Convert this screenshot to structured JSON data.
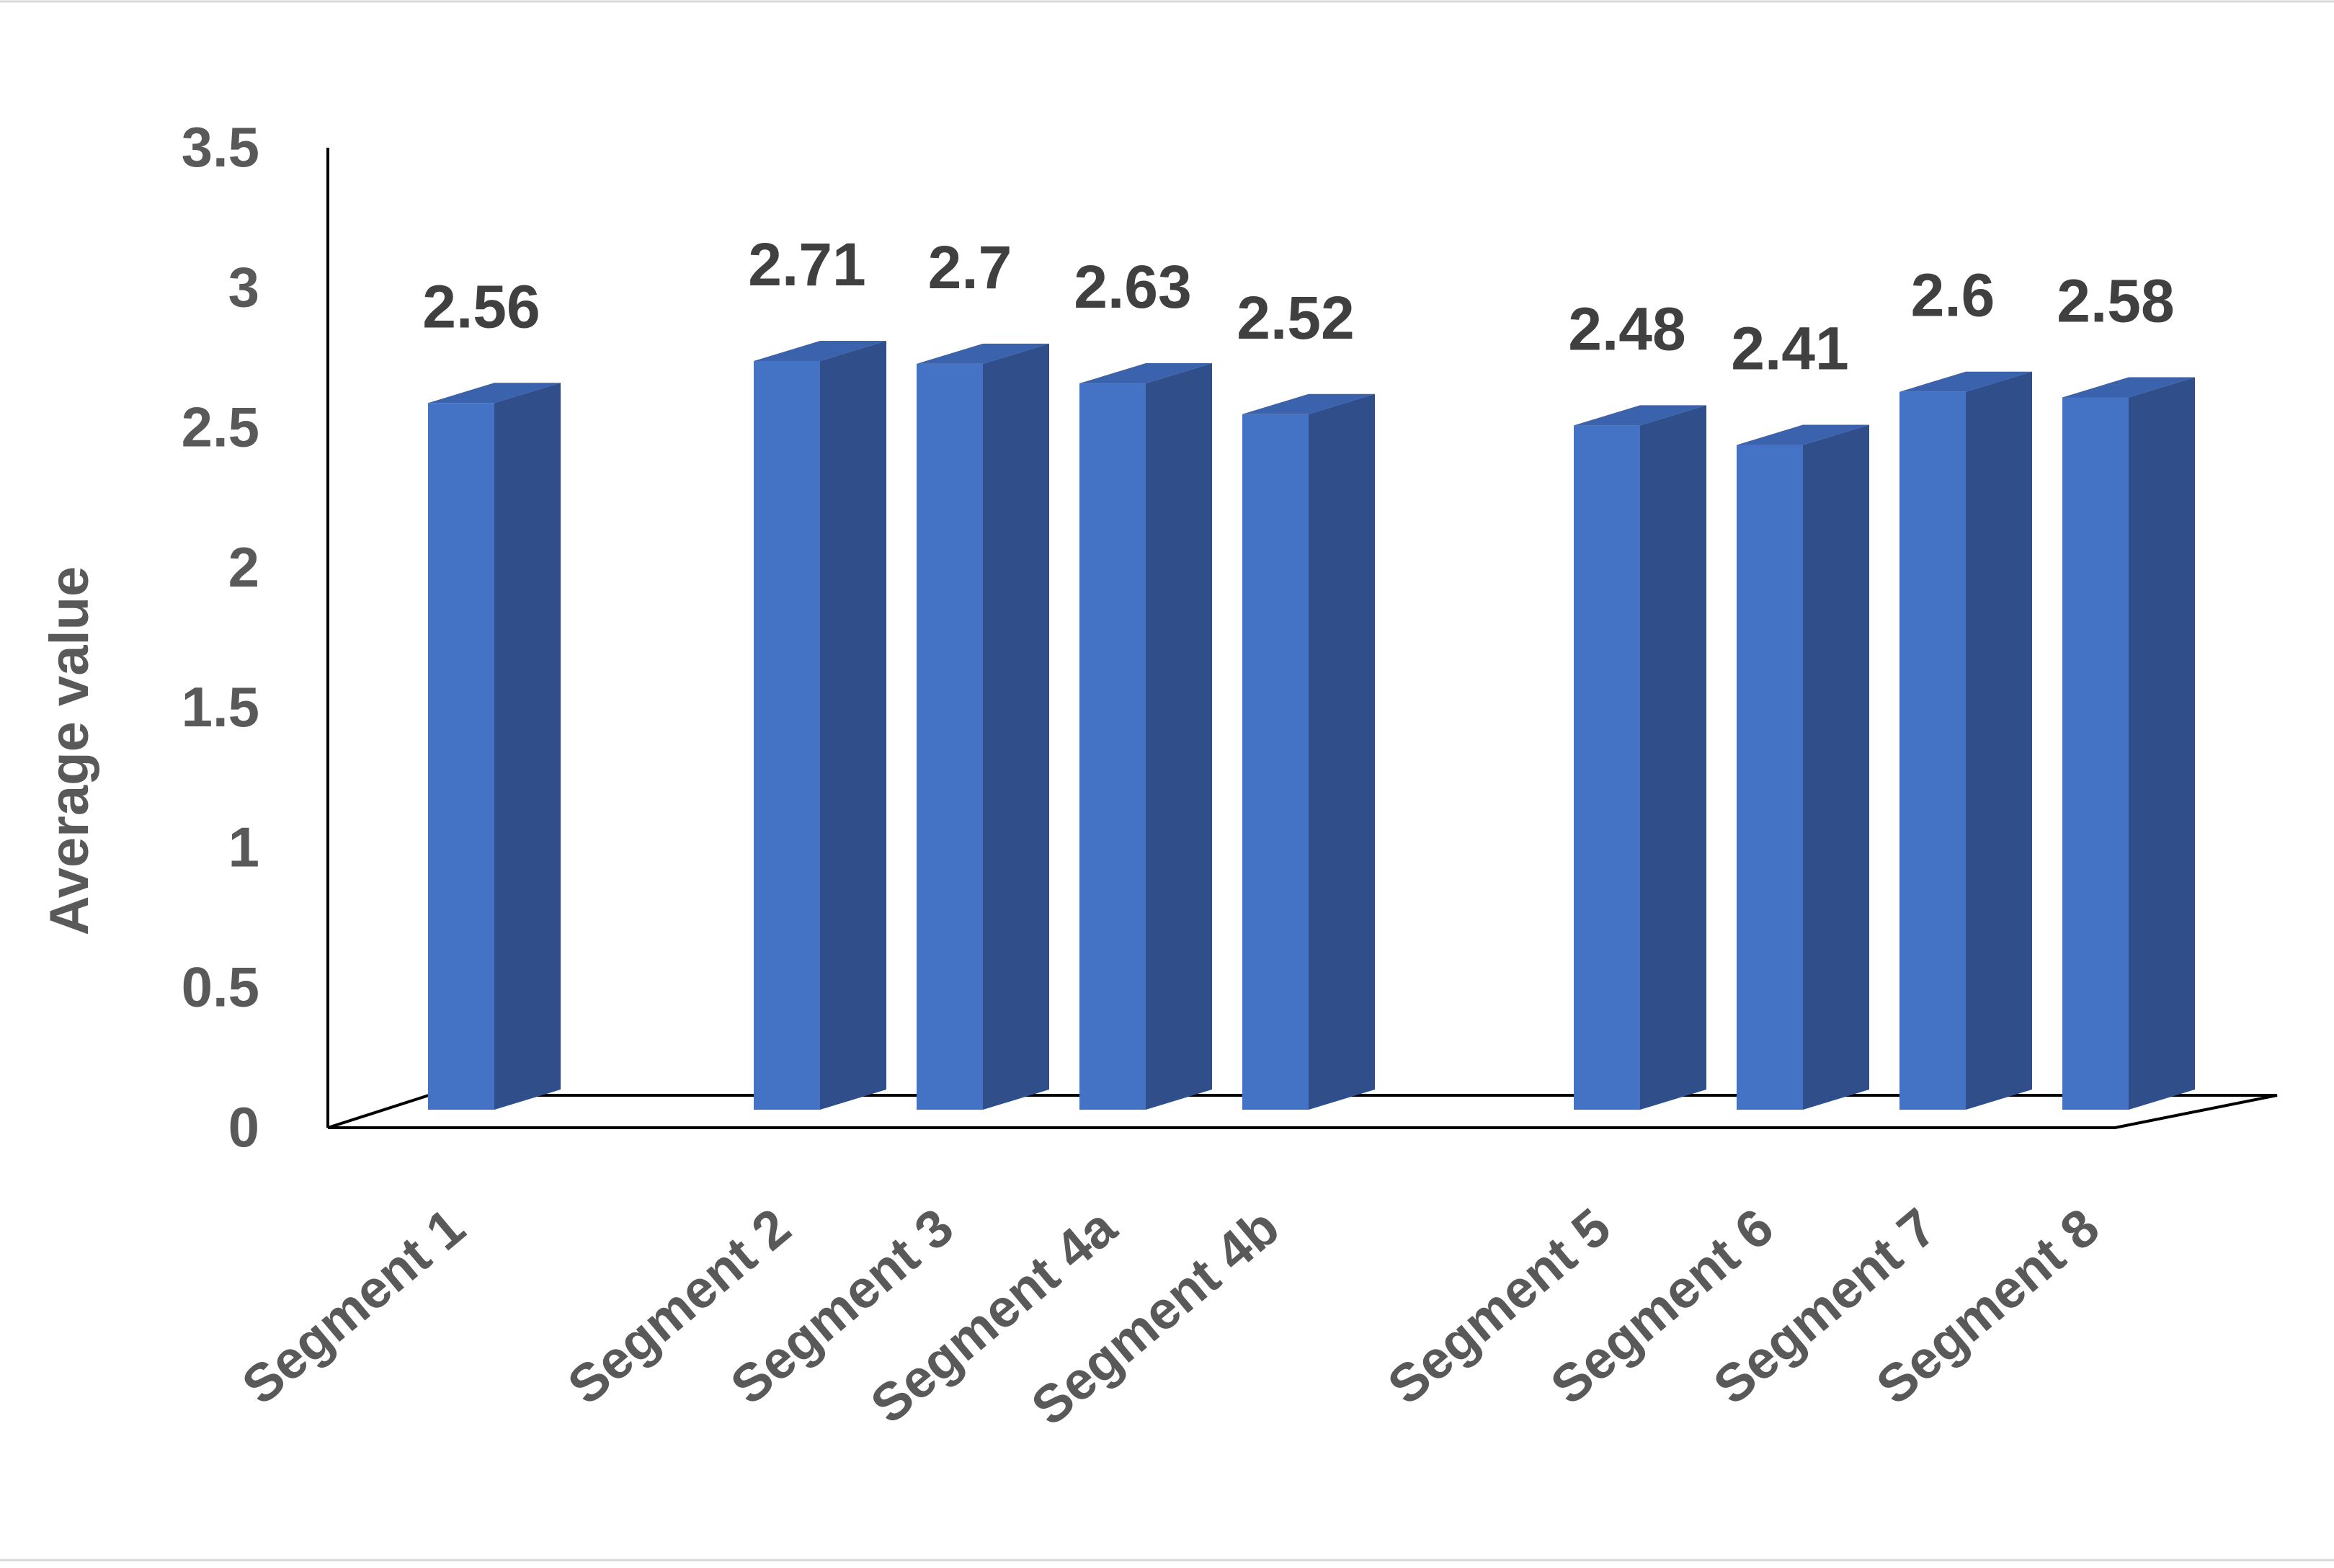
{
  "chart_data": {
    "type": "bar",
    "style": "3d-column",
    "categories": [
      "Segment 1",
      "",
      "Segment 2",
      "Segment 3",
      "Segment 4a",
      "Segment 4b",
      "",
      "Segment 5",
      "Segment 6",
      "Segment 7",
      "Segment 8"
    ],
    "values": [
      2.56,
      null,
      2.71,
      2.7,
      2.63,
      2.52,
      null,
      2.48,
      2.41,
      2.6,
      2.58
    ],
    "data_labels": [
      "2.56",
      "",
      "2.71",
      "2.7",
      "2.63",
      "2.52",
      "",
      "2.48",
      "2.41",
      "2.6",
      "2.58"
    ],
    "title": "",
    "xlabel": "",
    "ylabel": "Average value",
    "ylim": [
      0,
      3.5
    ],
    "yticks": [
      0,
      0.5,
      1,
      1.5,
      2,
      2.5,
      3,
      3.5
    ],
    "ytick_labels": [
      "0",
      "0.5",
      "1",
      "1.5",
      "2",
      "2.5",
      "3",
      "3.5"
    ],
    "grid": false,
    "legend": "none",
    "colors": {
      "bar_front": "#4472C4",
      "bar_side": "#2F4E8A",
      "bar_top": "#3A62AD",
      "axis_line": "#000000",
      "label_text": "#595959",
      "data_label_text": "#404040"
    }
  }
}
